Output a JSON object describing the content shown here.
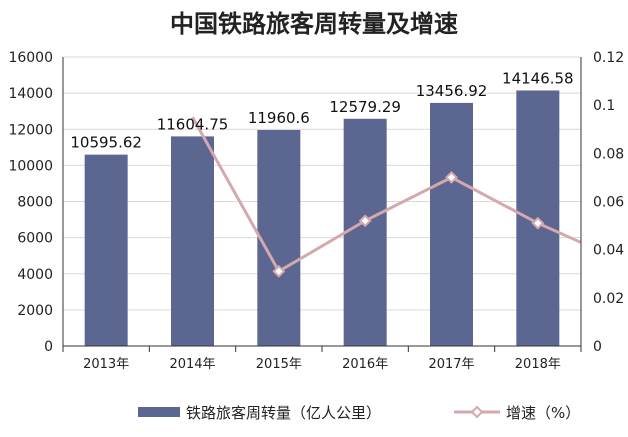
{
  "chart_data": {
    "type": "bar+line",
    "title": "中国铁路旅客周转量及增速",
    "categories": [
      "2013年",
      "2014年",
      "2015年",
      "2016年",
      "2017年",
      "2018年"
    ],
    "series": [
      {
        "name": "铁路旅客周转量（亿人公里）",
        "type": "bar",
        "axis": "left",
        "values": [
          10595.62,
          11604.75,
          11960.6,
          12579.29,
          13456.92,
          14146.58
        ],
        "labels": [
          "10595.62",
          "11604.75",
          "11960.6",
          "12579.29",
          "13456.92",
          "14146.58"
        ],
        "color": "#5b6691"
      },
      {
        "name": "增速（%）",
        "type": "line",
        "axis": "right",
        "values": [
          null,
          0.095,
          0.031,
          0.052,
          0.07,
          0.051
        ],
        "trailing_value": 0.043,
        "color": "#d4a8ad"
      }
    ],
    "y_left": {
      "min": 0,
      "max": 16000,
      "ticks": [
        "0",
        "2000",
        "4000",
        "6000",
        "8000",
        "10000",
        "12000",
        "14000",
        "16000"
      ]
    },
    "y_right": {
      "min": 0,
      "max": 0.12,
      "ticks": [
        "0",
        "0.02",
        "0.04",
        "0.06",
        "0.08",
        "0.1",
        "0.12"
      ]
    },
    "grid": true,
    "legend": "bottom"
  }
}
